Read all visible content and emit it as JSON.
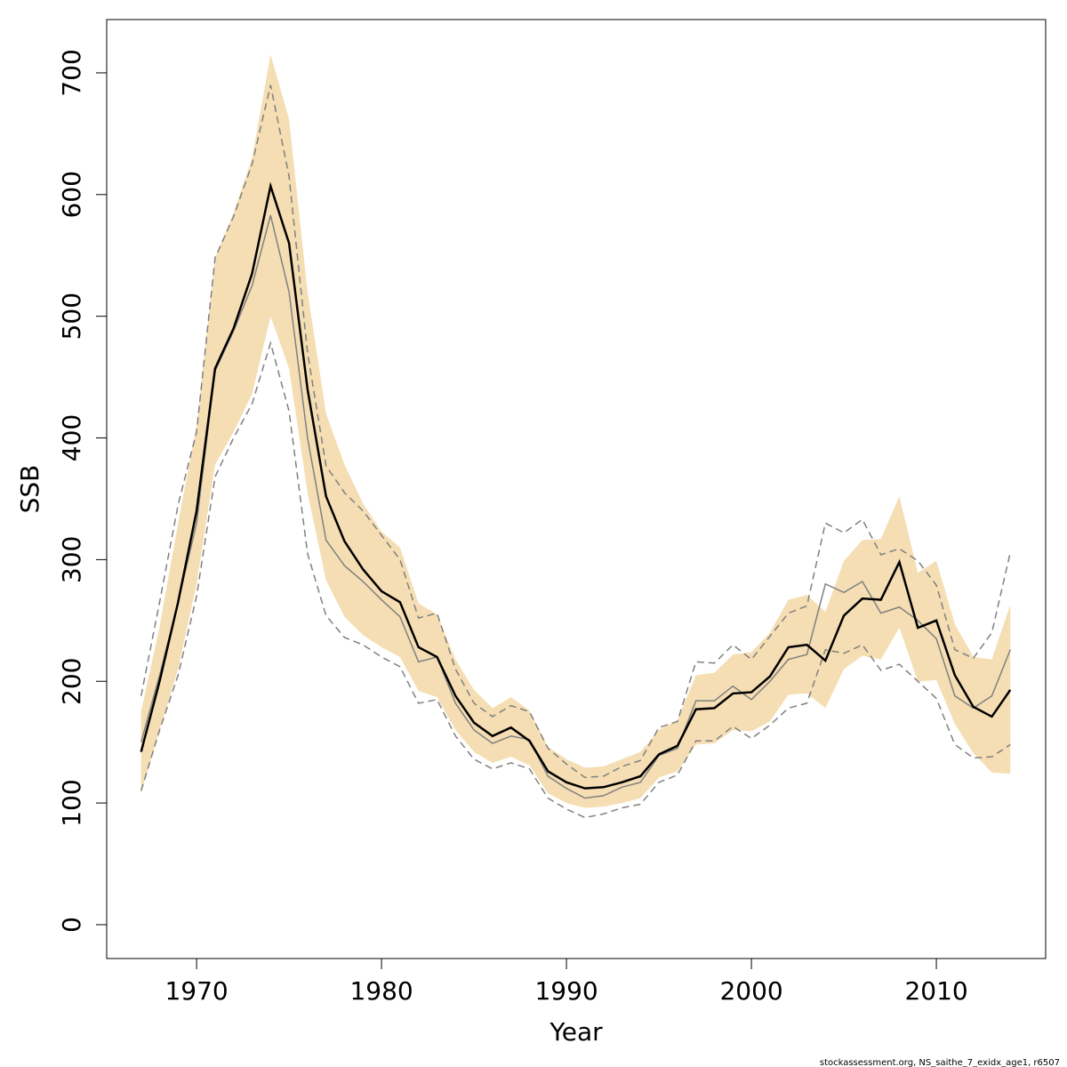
{
  "chart_data": {
    "type": "line",
    "x_label": "Year",
    "y_label": "SSB",
    "footer": "stockassessment.org, NS_saithe_7_exidx_age1, r6507",
    "x": [
      1967,
      1968,
      1969,
      1970,
      1971,
      1972,
      1973,
      1974,
      1975,
      1976,
      1977,
      1978,
      1979,
      1980,
      1981,
      1982,
      1983,
      1984,
      1985,
      1986,
      1987,
      1988,
      1989,
      1990,
      1991,
      1992,
      1993,
      1994,
      1995,
      1996,
      1997,
      1998,
      1999,
      2000,
      2001,
      2002,
      2003,
      2004,
      2005,
      2006,
      2007,
      2008,
      2009,
      2010,
      2011,
      2012,
      2013,
      2014
    ],
    "xlim": [
      1965.14,
      2015.91
    ],
    "xticks": [
      1970,
      1980,
      1990,
      2000,
      2010
    ],
    "ylim": [
      -27.8,
      743.8
    ],
    "yticks": [
      0,
      100,
      200,
      300,
      400,
      500,
      600,
      700
    ],
    "band": {
      "color": "#f5deb3",
      "upper": [
        175,
        245,
        330,
        410,
        548,
        585,
        630,
        715,
        662,
        520,
        420,
        378,
        346,
        323,
        310,
        264,
        255,
        218,
        193,
        178,
        187,
        176,
        146,
        136,
        129,
        130,
        136,
        142,
        160,
        168,
        205,
        207,
        222,
        224,
        240,
        267,
        271,
        257,
        299,
        316,
        317,
        352,
        289,
        299,
        247,
        220,
        218,
        263
      ],
      "lower": [
        108,
        160,
        210,
        280,
        378,
        405,
        436,
        500,
        457,
        355,
        283,
        253,
        238,
        228,
        220,
        192,
        187,
        160,
        142,
        133,
        138,
        131,
        108,
        100,
        96,
        97,
        100,
        104,
        121,
        126,
        148,
        149,
        160,
        159,
        167,
        189,
        190,
        178,
        210,
        221,
        218,
        244,
        200,
        201,
        165,
        141,
        125,
        124
      ]
    },
    "series": [
      {
        "color": "#808080",
        "dash": true,
        "width": 1.5,
        "values": [
          188,
          265,
          345,
          405,
          548,
          582,
          625,
          690,
          615,
          470,
          377,
          355,
          340,
          320,
          300,
          252,
          256,
          210,
          182,
          171,
          180,
          175,
          145,
          132,
          121,
          122,
          130,
          135,
          162,
          167,
          216,
          215,
          230,
          218,
          237,
          256,
          262,
          330,
          322,
          333,
          304,
          309,
          299,
          279,
          226,
          219,
          240,
          306
        ]
      },
      {
        "color": "#808080",
        "dash": true,
        "width": 1.5,
        "values": [
          110,
          160,
          205,
          270,
          368,
          400,
          428,
          478,
          422,
          305,
          254,
          236,
          230,
          220,
          212,
          182,
          185,
          155,
          136,
          128,
          133,
          128,
          104,
          95,
          88,
          91,
          96,
          99,
          117,
          123,
          151,
          151,
          163,
          153,
          164,
          178,
          182,
          226,
          223,
          230,
          209,
          214,
          200,
          186,
          148,
          137,
          138,
          148
        ]
      },
      {
        "color": "#808080",
        "dash": false,
        "width": 1.5,
        "values": [
          150,
          205,
          265,
          330,
          455,
          488,
          525,
          583,
          520,
          400,
          316,
          295,
          282,
          267,
          253,
          216,
          220,
          182,
          160,
          149,
          155,
          152,
          122,
          112,
          104,
          106,
          113,
          117,
          139,
          145,
          184,
          184,
          196,
          185,
          200,
          218,
          222,
          280,
          273,
          282,
          256,
          261,
          250,
          235,
          188,
          178,
          188,
          226
        ]
      },
      {
        "color": "#000000",
        "dash": false,
        "width": 2.5,
        "values": [
          142,
          200,
          265,
          340,
          457,
          490,
          535,
          607,
          560,
          440,
          352,
          315,
          292,
          274,
          265,
          228,
          220,
          188,
          166,
          155,
          162,
          151,
          126,
          117,
          112,
          113,
          117,
          122,
          140,
          147,
          177,
          178,
          190,
          191,
          204,
          228,
          230,
          217,
          254,
          268,
          267,
          298,
          244,
          250,
          205,
          179,
          171,
          193
        ]
      }
    ]
  }
}
